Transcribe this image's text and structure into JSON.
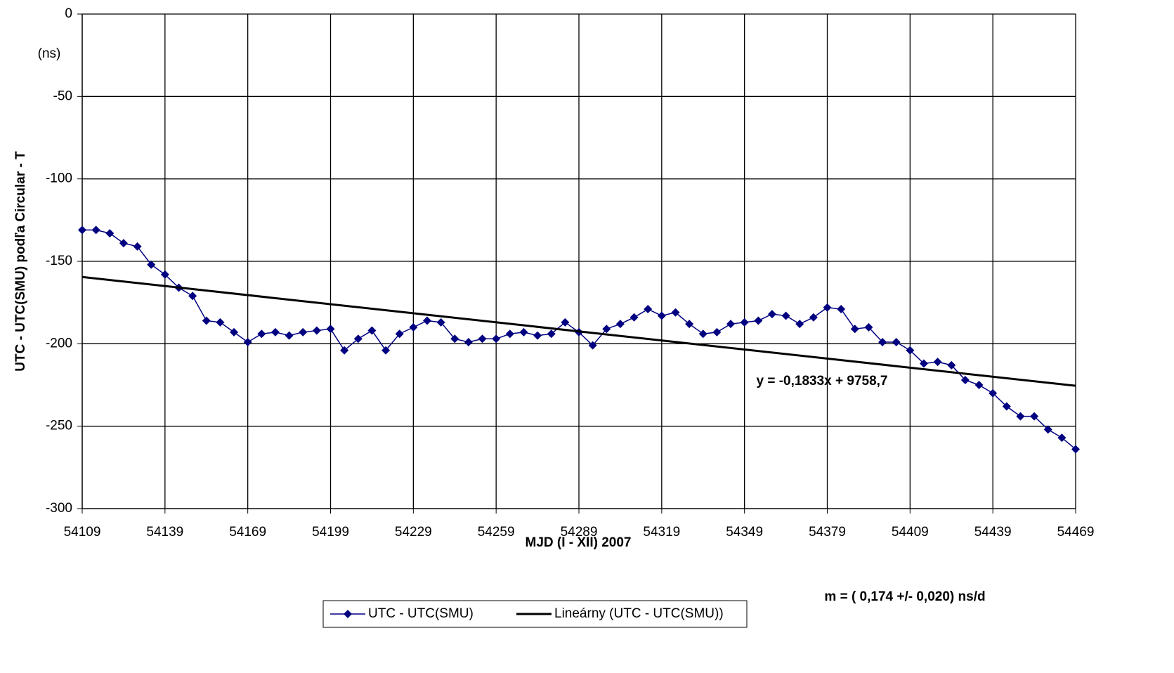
{
  "chart_data": {
    "type": "line",
    "x_label": "MJD (I - XII) 2007",
    "y_label": "UTC - UTC(SMU) podľa Circular - T",
    "annotations": [
      "(ns)",
      "y = -0,1833x + 9758,7",
      "m = ( 0,174 +/- 0,020) ns/d"
    ],
    "x": [
      54109,
      54114,
      54119,
      54124,
      54129,
      54134,
      54139,
      54144,
      54149,
      54154,
      54159,
      54164,
      54169,
      54174,
      54179,
      54184,
      54189,
      54194,
      54199,
      54204,
      54209,
      54214,
      54219,
      54224,
      54229,
      54234,
      54239,
      54244,
      54249,
      54254,
      54259,
      54264,
      54269,
      54274,
      54279,
      54284,
      54289,
      54294,
      54299,
      54304,
      54309,
      54314,
      54319,
      54324,
      54329,
      54334,
      54339,
      54344,
      54349,
      54354,
      54359,
      54364,
      54369,
      54374,
      54379,
      54384,
      54389,
      54394,
      54399,
      54404,
      54409,
      54414,
      54419,
      54424,
      54429,
      54434,
      54439,
      54444,
      54449,
      54454,
      54459,
      54464,
      54469
    ],
    "series": [
      {
        "name": "UTC - UTC(SMU)",
        "color": "#000080",
        "marker": "diamond",
        "values": [
          -131,
          -131,
          -133,
          -139,
          -141,
          -152,
          -158,
          -166,
          -171,
          -186,
          -187,
          -193,
          -199,
          -194,
          -193,
          -195,
          -193,
          -192,
          -191,
          -204,
          -197,
          -192,
          -204,
          -194,
          -190,
          -186,
          -187,
          -197,
          -199,
          -197,
          -197,
          -194,
          -193,
          -195,
          -194,
          -187,
          -193,
          -201,
          -191,
          -188,
          -184,
          -179,
          -183,
          -181,
          -188,
          -194,
          -193,
          -188,
          -187,
          -186,
          -182,
          -183,
          -188,
          -184,
          -178,
          -179,
          -191,
          -190,
          -199,
          -199,
          -204,
          -212,
          -211,
          -213,
          -222,
          -225,
          -230,
          -238,
          -244,
          -244,
          -252,
          -257,
          -264
        ]
      },
      {
        "name": "Lineárny (UTC - UTC(SMU))",
        "color": "#000000",
        "x": [
          54109,
          54469
        ],
        "values": [
          -159.5,
          -225.5
        ]
      }
    ],
    "xlim": [
      54109,
      54469
    ],
    "xticks": [
      54109,
      54139,
      54169,
      54199,
      54229,
      54259,
      54289,
      54319,
      54349,
      54379,
      54409,
      54439,
      54469
    ],
    "ylim": [
      -300,
      0
    ],
    "yticks": [
      0,
      -50,
      -100,
      -150,
      -200,
      -250,
      -300
    ],
    "grid": true,
    "legend": "bottom"
  }
}
